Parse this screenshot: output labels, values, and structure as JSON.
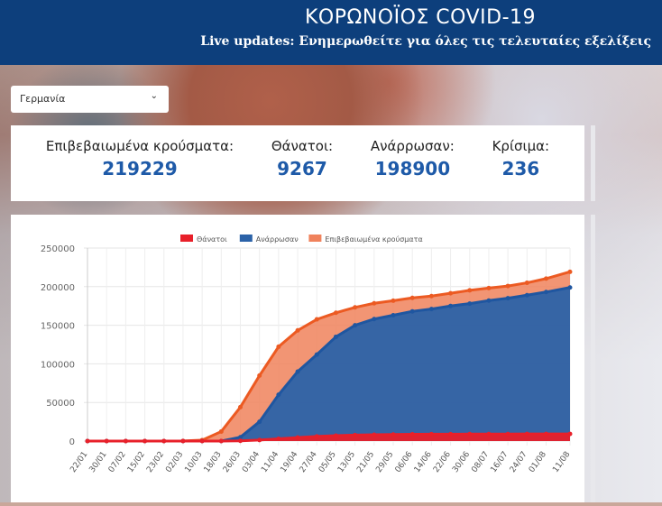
{
  "header": {
    "title": "ΚΟΡΩΝΟΪΟΣ COVID-19",
    "subtitle": "Live updates: Ενημερωθείτε για όλες τις τελευταίες εξελίξεις"
  },
  "country_select": {
    "value": "Γερμανία"
  },
  "stats": [
    {
      "label": "Επιβεβαιωμένα κρούσματα:",
      "value": "219229"
    },
    {
      "label": "Θάνατοι:",
      "value": "9267"
    },
    {
      "label": "Ανάρρωσαν:",
      "value": "198900"
    },
    {
      "label": "Κρίσιμα:",
      "value": "236"
    }
  ],
  "chart_data": {
    "type": "area",
    "x": [
      "22/01",
      "30/01",
      "07/02",
      "15/02",
      "23/02",
      "02/03",
      "10/03",
      "18/03",
      "26/03",
      "03/04",
      "11/04",
      "19/04",
      "27/04",
      "05/05",
      "13/05",
      "21/05",
      "29/05",
      "06/06",
      "14/06",
      "22/06",
      "30/06",
      "08/07",
      "16/07",
      "24/07",
      "01/08",
      "11/08"
    ],
    "ylim": [
      0,
      250000
    ],
    "yticks": [
      "0",
      "50000",
      "100000",
      "150000",
      "200000",
      "250000"
    ],
    "legend_position": "top",
    "series": [
      {
        "name": "Θάνατοι",
        "color": "#e8202a",
        "values": [
          0,
          0,
          0,
          0,
          0,
          0,
          2,
          30,
          250,
          1300,
          2900,
          4500,
          6000,
          7000,
          7700,
          8200,
          8500,
          8700,
          8900,
          8950,
          9000,
          9080,
          9100,
          9150,
          9200,
          9267
        ]
      },
      {
        "name": "Ανάρρωσαν",
        "color": "#2b62a8",
        "values": [
          0,
          0,
          0,
          0,
          0,
          0,
          0,
          50,
          5000,
          25000,
          60000,
          90000,
          112000,
          135000,
          150000,
          158000,
          163000,
          168000,
          171000,
          175000,
          178000,
          182000,
          185000,
          189000,
          193000,
          198900
        ]
      },
      {
        "name": "Επιβεβαιωμένα κρούσματα",
        "color": "#f0825c",
        "values": [
          0,
          5,
          14,
          16,
          16,
          159,
          1224,
          12327,
          43938,
          84794,
          122171,
          143342,
          157641,
          166152,
          173152,
          178473,
          181815,
          185416,
          187764,
          191449,
          195228,
          198178,
          200843,
          204964,
          210402,
          219229
        ]
      }
    ]
  }
}
